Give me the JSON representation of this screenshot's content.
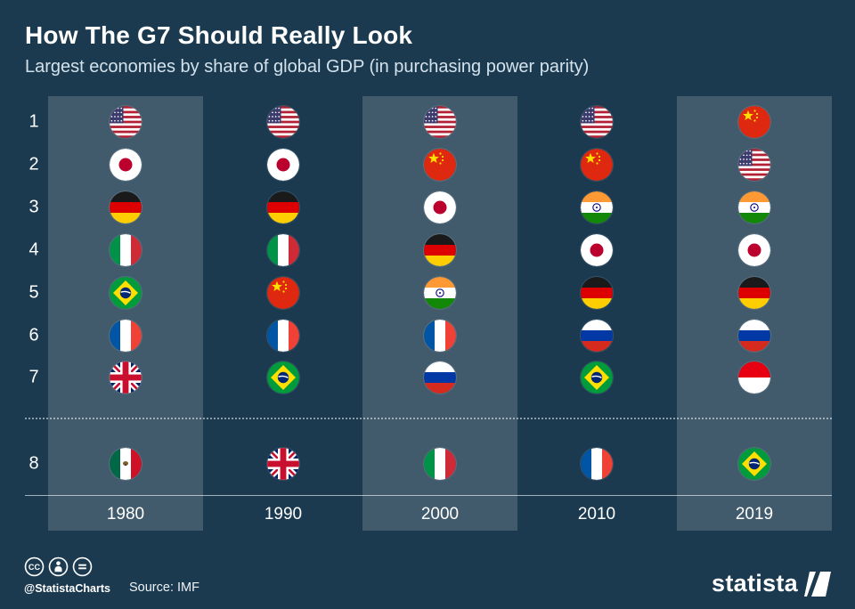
{
  "header": {
    "title": "How The G7 Should Really Look",
    "subtitle": "Largest economies by share of global GDP (in purchasing power parity)"
  },
  "chart_data": {
    "type": "table",
    "title": "How The G7 Should Really Look",
    "subtitle": "Largest economies by share of global GDP (in purchasing power parity)",
    "description": "Ranking (1-8) of largest economies by share of global GDP in purchasing power parity, per year; ranks 1-7 separated from rank 8 by a dotted line",
    "ranks": [
      "1",
      "2",
      "3",
      "4",
      "5",
      "6",
      "7",
      "8"
    ],
    "columns": [
      {
        "year": "1980",
        "highlighted": true,
        "flags": [
          "us",
          "jp",
          "de",
          "it",
          "br",
          "fr",
          "gb",
          "mx"
        ],
        "countries": [
          "United States",
          "Japan",
          "Germany",
          "Italy",
          "Brazil",
          "France",
          "United Kingdom",
          "Mexico"
        ]
      },
      {
        "year": "1990",
        "highlighted": false,
        "flags": [
          "us",
          "jp",
          "de",
          "it",
          "cn",
          "fr",
          "br",
          "gb"
        ],
        "countries": [
          "United States",
          "Japan",
          "Germany",
          "Italy",
          "China",
          "France",
          "Brazil",
          "United Kingdom"
        ]
      },
      {
        "year": "2000",
        "highlighted": true,
        "flags": [
          "us",
          "cn",
          "jp",
          "de",
          "in",
          "fr",
          "ru",
          "it"
        ],
        "countries": [
          "United States",
          "China",
          "Japan",
          "Germany",
          "India",
          "France",
          "Russia",
          "Italy"
        ]
      },
      {
        "year": "2010",
        "highlighted": false,
        "flags": [
          "us",
          "cn",
          "in",
          "jp",
          "de",
          "ru",
          "br",
          "fr"
        ],
        "countries": [
          "United States",
          "China",
          "India",
          "Japan",
          "Germany",
          "Russia",
          "Brazil",
          "France"
        ]
      },
      {
        "year": "2019",
        "highlighted": true,
        "flags": [
          "cn",
          "us",
          "in",
          "jp",
          "de",
          "ru",
          "id",
          "br"
        ],
        "countries": [
          "China",
          "United States",
          "India",
          "Japan",
          "Germany",
          "Russia",
          "Indonesia",
          "Brazil"
        ]
      }
    ]
  },
  "footer": {
    "license_icons": [
      "creative-commons-icon",
      "attribution-icon",
      "no-derivatives-icon"
    ],
    "handle": "@StatistaCharts",
    "source": "Source: IMF",
    "brand": "statista"
  },
  "colors": {
    "background": "#1b3a50",
    "column_highlight": "rgba(255,255,255,0.17)",
    "title_text": "#ffffff",
    "subtitle_text": "#d4e2ec"
  }
}
